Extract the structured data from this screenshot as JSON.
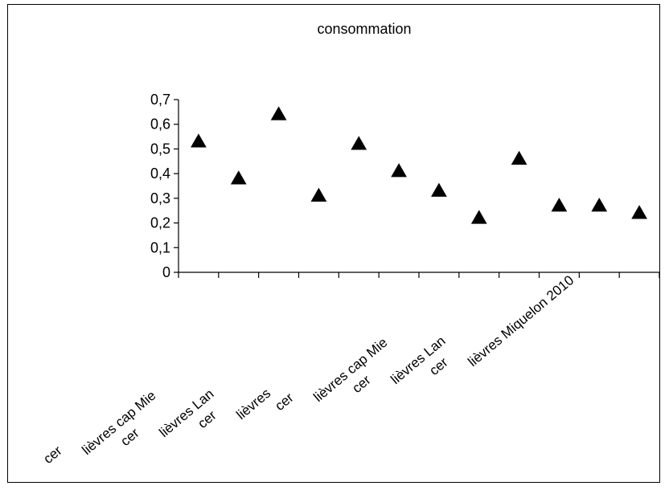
{
  "chart_data": {
    "type": "scatter",
    "title": "consommation",
    "xlabel": "",
    "ylabel": "",
    "ylim": [
      0,
      0.7
    ],
    "yticks": [
      "0",
      "0,1",
      "0,2",
      "0,3",
      "0,4",
      "0,5",
      "0,6",
      "0,7"
    ],
    "categories": [
      "cer",
      "lièvres cap Mie",
      "cer",
      "lièvres Lan",
      "cer",
      "lièvres",
      "cer",
      "lièvres cap Mie",
      "cer",
      "lièvres Lan",
      "cer",
      "lièvres Miquelon 2010"
    ],
    "series": [
      {
        "marker": "triangle",
        "color": "#000000",
        "values": [
          0.53,
          0.38,
          0.64,
          0.31,
          0.52,
          0.41,
          0.33,
          0.22,
          0.46,
          0.27,
          0.27,
          0.24
        ]
      }
    ],
    "grid": false,
    "legend": "none"
  }
}
